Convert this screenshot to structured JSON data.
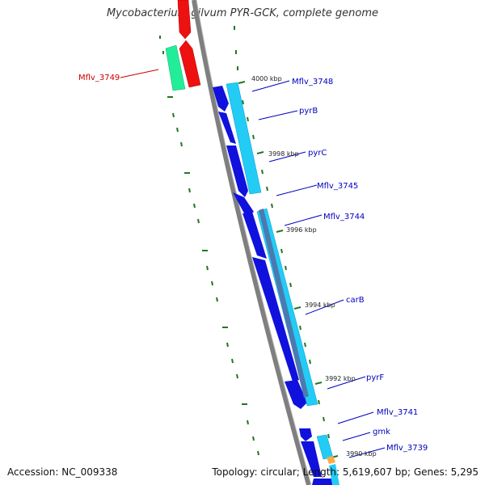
{
  "title": "Mycobacterium gilvum PYR-GCK, complete genome",
  "footer": {
    "accession": "Accession: NC_009338",
    "summary": "Topology: circular; Length: 5,619,607 bp; Genes: 5,295"
  },
  "colors": {
    "backbone": "#7f7f7f",
    "red_gene": "#ee1111",
    "teal_gene": "#22ee99",
    "blue_gene": "#1111dd",
    "cyan_gene": "#22ccf5",
    "steel_gene": "#4a7ab0",
    "orange_gene": "#ffaa44",
    "tick": "#227722",
    "label_blue": "#0000c0",
    "label_red": "#cc0000"
  },
  "kbp_labels": [
    "4000 kbp",
    "3998 kbp",
    "3996 kbp",
    "3994 kbp",
    "3992 kbp",
    "3990 kbp"
  ],
  "genes": [
    {
      "name": "Mflv_3749",
      "color": "red"
    },
    {
      "name": "Mflv_3748",
      "color": "blue"
    },
    {
      "name": "pyrB",
      "color": "blue"
    },
    {
      "name": "pyrC",
      "color": "blue"
    },
    {
      "name": "Mflv_3745",
      "color": "blue"
    },
    {
      "name": "Mflv_3744",
      "color": "blue"
    },
    {
      "name": "carB",
      "color": "blue"
    },
    {
      "name": "pyrF",
      "color": "blue"
    },
    {
      "name": "Mflv_3741",
      "color": "blue"
    },
    {
      "name": "gmk",
      "color": "blue"
    },
    {
      "name": "Mflv_3739",
      "color": "blue"
    }
  ]
}
